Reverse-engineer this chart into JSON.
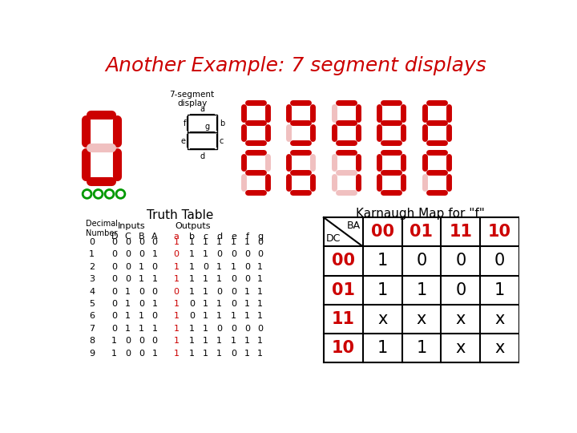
{
  "title": "Another Example: 7 segment displays",
  "bg_color": "#ffffff",
  "kmap_title": "Karnaugh Map for \"f\"",
  "kmap_col_labels": [
    "00",
    "01",
    "11",
    "10"
  ],
  "kmap_row_labels": [
    "00",
    "01",
    "11",
    "10"
  ],
  "kmap_col_header": "BA",
  "kmap_row_header": "DC",
  "kmap_values": [
    [
      "1",
      "0",
      "0",
      "0"
    ],
    [
      "1",
      "1",
      "0",
      "1"
    ],
    [
      "x",
      "x",
      "x",
      "x"
    ],
    [
      "1",
      "1",
      "x",
      "x"
    ]
  ],
  "truth_table_title": "Truth Table",
  "truth_table_rows": [
    [
      0,
      0,
      0,
      0,
      0,
      1,
      1,
      1,
      1,
      1,
      1,
      0
    ],
    [
      1,
      0,
      0,
      0,
      1,
      0,
      1,
      1,
      0,
      0,
      0,
      0
    ],
    [
      2,
      0,
      0,
      1,
      0,
      1,
      1,
      0,
      1,
      1,
      0,
      1
    ],
    [
      3,
      0,
      0,
      1,
      1,
      1,
      1,
      1,
      1,
      0,
      0,
      1
    ],
    [
      4,
      0,
      1,
      0,
      0,
      0,
      1,
      1,
      0,
      0,
      1,
      1
    ],
    [
      5,
      0,
      1,
      0,
      1,
      1,
      0,
      1,
      1,
      0,
      1,
      1
    ],
    [
      6,
      0,
      1,
      1,
      0,
      1,
      0,
      1,
      1,
      1,
      1,
      1
    ],
    [
      7,
      0,
      1,
      1,
      1,
      1,
      1,
      1,
      0,
      0,
      0,
      0
    ],
    [
      8,
      1,
      0,
      0,
      0,
      1,
      1,
      1,
      1,
      1,
      1,
      1
    ],
    [
      9,
      1,
      0,
      0,
      1,
      1,
      1,
      1,
      1,
      0,
      1,
      1
    ]
  ],
  "top_row_segs": [
    {
      "a": 1,
      "b": 1,
      "c": 1,
      "d": 1,
      "e": 1,
      "f": 1,
      "g": 1
    },
    {
      "a": 1,
      "b": 1,
      "c": 1,
      "d": 1,
      "e": 0,
      "f": 1,
      "g": 1
    },
    {
      "a": 1,
      "b": 1,
      "c": 1,
      "d": 1,
      "e": 1,
      "f": 0,
      "g": 1
    },
    {
      "a": 1,
      "b": 1,
      "c": 1,
      "d": 1,
      "e": 1,
      "f": 1,
      "g": 1
    },
    {
      "a": 1,
      "b": 1,
      "c": 1,
      "d": 1,
      "e": 1,
      "f": 1,
      "g": 1
    }
  ],
  "bot_row_segs": [
    {
      "a": 1,
      "b": 0,
      "c": 1,
      "d": 1,
      "e": 0,
      "f": 1,
      "g": 1
    },
    {
      "a": 1,
      "b": 0,
      "c": 1,
      "d": 1,
      "e": 1,
      "f": 1,
      "g": 1
    },
    {
      "a": 1,
      "b": 1,
      "c": 1,
      "d": 0,
      "e": 0,
      "f": 0,
      "g": 0
    },
    {
      "a": 1,
      "b": 1,
      "c": 1,
      "d": 1,
      "e": 1,
      "f": 1,
      "g": 1
    },
    {
      "a": 1,
      "b": 1,
      "c": 1,
      "d": 1,
      "e": 0,
      "f": 1,
      "g": 1
    }
  ],
  "red": "#cc0000",
  "black": "#000000",
  "segment_color": "#cc0000",
  "segment_off_color": "#f0c0c0",
  "green_circle_color": "#009900",
  "seg_display_label": "7-segment\ndisplay"
}
